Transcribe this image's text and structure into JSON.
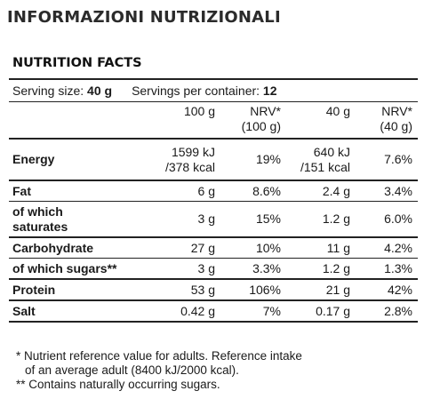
{
  "page_title": "INFORMAZIONI NUTRIZIONALI",
  "section_title": "NUTRITION FACTS",
  "serving": {
    "size_label": "Serving size: ",
    "size_value": "40 g",
    "per_container_label": "Servings per container: ",
    "per_container_value": "12"
  },
  "columns": {
    "per100": "100 g",
    "nrv100_line1": "NRV*",
    "nrv100_line2": "(100 g)",
    "per40": "40 g",
    "nrv40_line1": "NRV*",
    "nrv40_line2": "(40 g)"
  },
  "rows": [
    {
      "label1": "Energy",
      "label2": "",
      "v100a": "1599 kJ",
      "v100b": "/378 kcal",
      "nrv100": "19%",
      "v40a": "640 kJ",
      "v40b": "/151 kcal",
      "nrv40": "7.6%"
    },
    {
      "label1": "Fat",
      "label2": "",
      "v100a": "6 g",
      "v100b": "",
      "nrv100": "8.6%",
      "v40a": "2.4 g",
      "v40b": "",
      "nrv40": "3.4%"
    },
    {
      "label1": "of which",
      "label2": "saturates",
      "v100a": "3 g",
      "v100b": "",
      "nrv100": "15%",
      "v40a": "1.2 g",
      "v40b": "",
      "nrv40": "6.0%"
    },
    {
      "label1": "Carbohydrate",
      "label2": "",
      "v100a": "27 g",
      "v100b": "",
      "nrv100": "10%",
      "v40a": "11 g",
      "v40b": "",
      "nrv40": "4.2%"
    },
    {
      "label1": "of which sugars**",
      "label2": "",
      "v100a": "3 g",
      "v100b": "",
      "nrv100": "3.3%",
      "v40a": "1.2 g",
      "v40b": "",
      "nrv40": "1.3%"
    },
    {
      "label1": "Protein",
      "label2": "",
      "v100a": "53 g",
      "v100b": "",
      "nrv100": "106%",
      "v40a": "21 g",
      "v40b": "",
      "nrv40": "42%"
    },
    {
      "label1": "Salt",
      "label2": "",
      "v100a": "0.42 g",
      "v100b": "",
      "nrv100": "7%",
      "v40a": "0.17 g",
      "v40b": "",
      "nrv40": "2.8%"
    }
  ],
  "footnotes": {
    "nrv_line1": "* Nutrient reference value for adults. Reference intake",
    "nrv_line2": "of an average adult (8400 kJ/2000 kcal).",
    "sugars": "** Contains naturally occurring sugars."
  }
}
